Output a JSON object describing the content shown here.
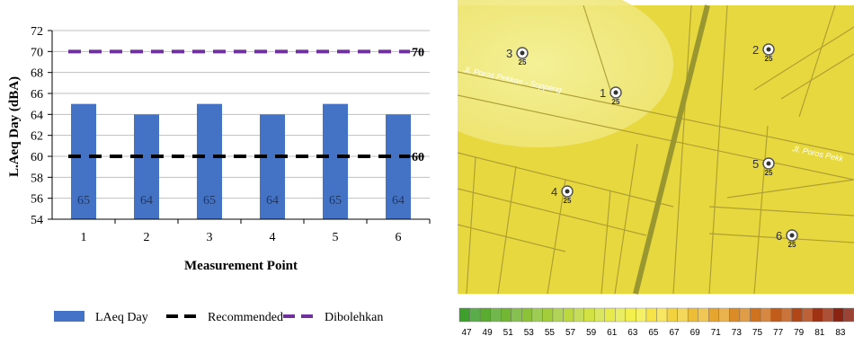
{
  "chart_data": {
    "type": "bar",
    "xlabel": "Measurement Point",
    "ylabel": "L.Aeq Day (dBA)",
    "categories": [
      "1",
      "2",
      "3",
      "4",
      "5",
      "6"
    ],
    "ylim": [
      54,
      72
    ],
    "yticks": [
      54,
      56,
      58,
      60,
      62,
      64,
      66,
      68,
      70,
      72
    ],
    "grid": true,
    "legend_position": "bottom",
    "series": [
      {
        "name": "LAeq Day",
        "type": "bar",
        "values": [
          65,
          64,
          65,
          64,
          65,
          64
        ],
        "color": "#4472c4"
      },
      {
        "name": "Recommended",
        "type": "line",
        "style": "dashed",
        "values": [
          60,
          60,
          60,
          60,
          60,
          60
        ],
        "color": "#000000",
        "end_label": "60"
      },
      {
        "name": "Dibolehkan",
        "type": "line",
        "style": "dashed",
        "values": [
          70,
          70,
          70,
          70,
          70,
          70
        ],
        "color": "#7030a0",
        "end_label": "70"
      }
    ],
    "bar_labels": [
      "65",
      "64",
      "65",
      "64",
      "65",
      "64"
    ]
  },
  "map": {
    "road_labels": [
      "Jl. Poros Pekkae - Soppeng",
      "Jl. Poros Pekk"
    ],
    "receivers": [
      {
        "number": "3",
        "value": "25"
      },
      {
        "number": "1",
        "value": "25"
      },
      {
        "number": "2",
        "value": "25"
      },
      {
        "number": "5",
        "value": "25"
      },
      {
        "number": "4",
        "value": "25"
      },
      {
        "number": "6",
        "value": "25"
      }
    ],
    "scale_values": [
      "47",
      "49",
      "51",
      "53",
      "55",
      "57",
      "59",
      "61",
      "63",
      "65",
      "67",
      "69",
      "71",
      "73",
      "75",
      "77",
      "79",
      "81",
      "83"
    ],
    "scale_colors": [
      "#3f9f2d",
      "#5aab2f",
      "#72b633",
      "#8cc237",
      "#a4cd3b",
      "#bcd83f",
      "#d2e245",
      "#e6ea4a",
      "#f3ef4c",
      "#f6e347",
      "#f3d240",
      "#eebd38",
      "#e6a52f",
      "#db8c27",
      "#cf7320",
      "#c15c1a",
      "#b14616",
      "#9e3213",
      "#8a2311"
    ]
  }
}
